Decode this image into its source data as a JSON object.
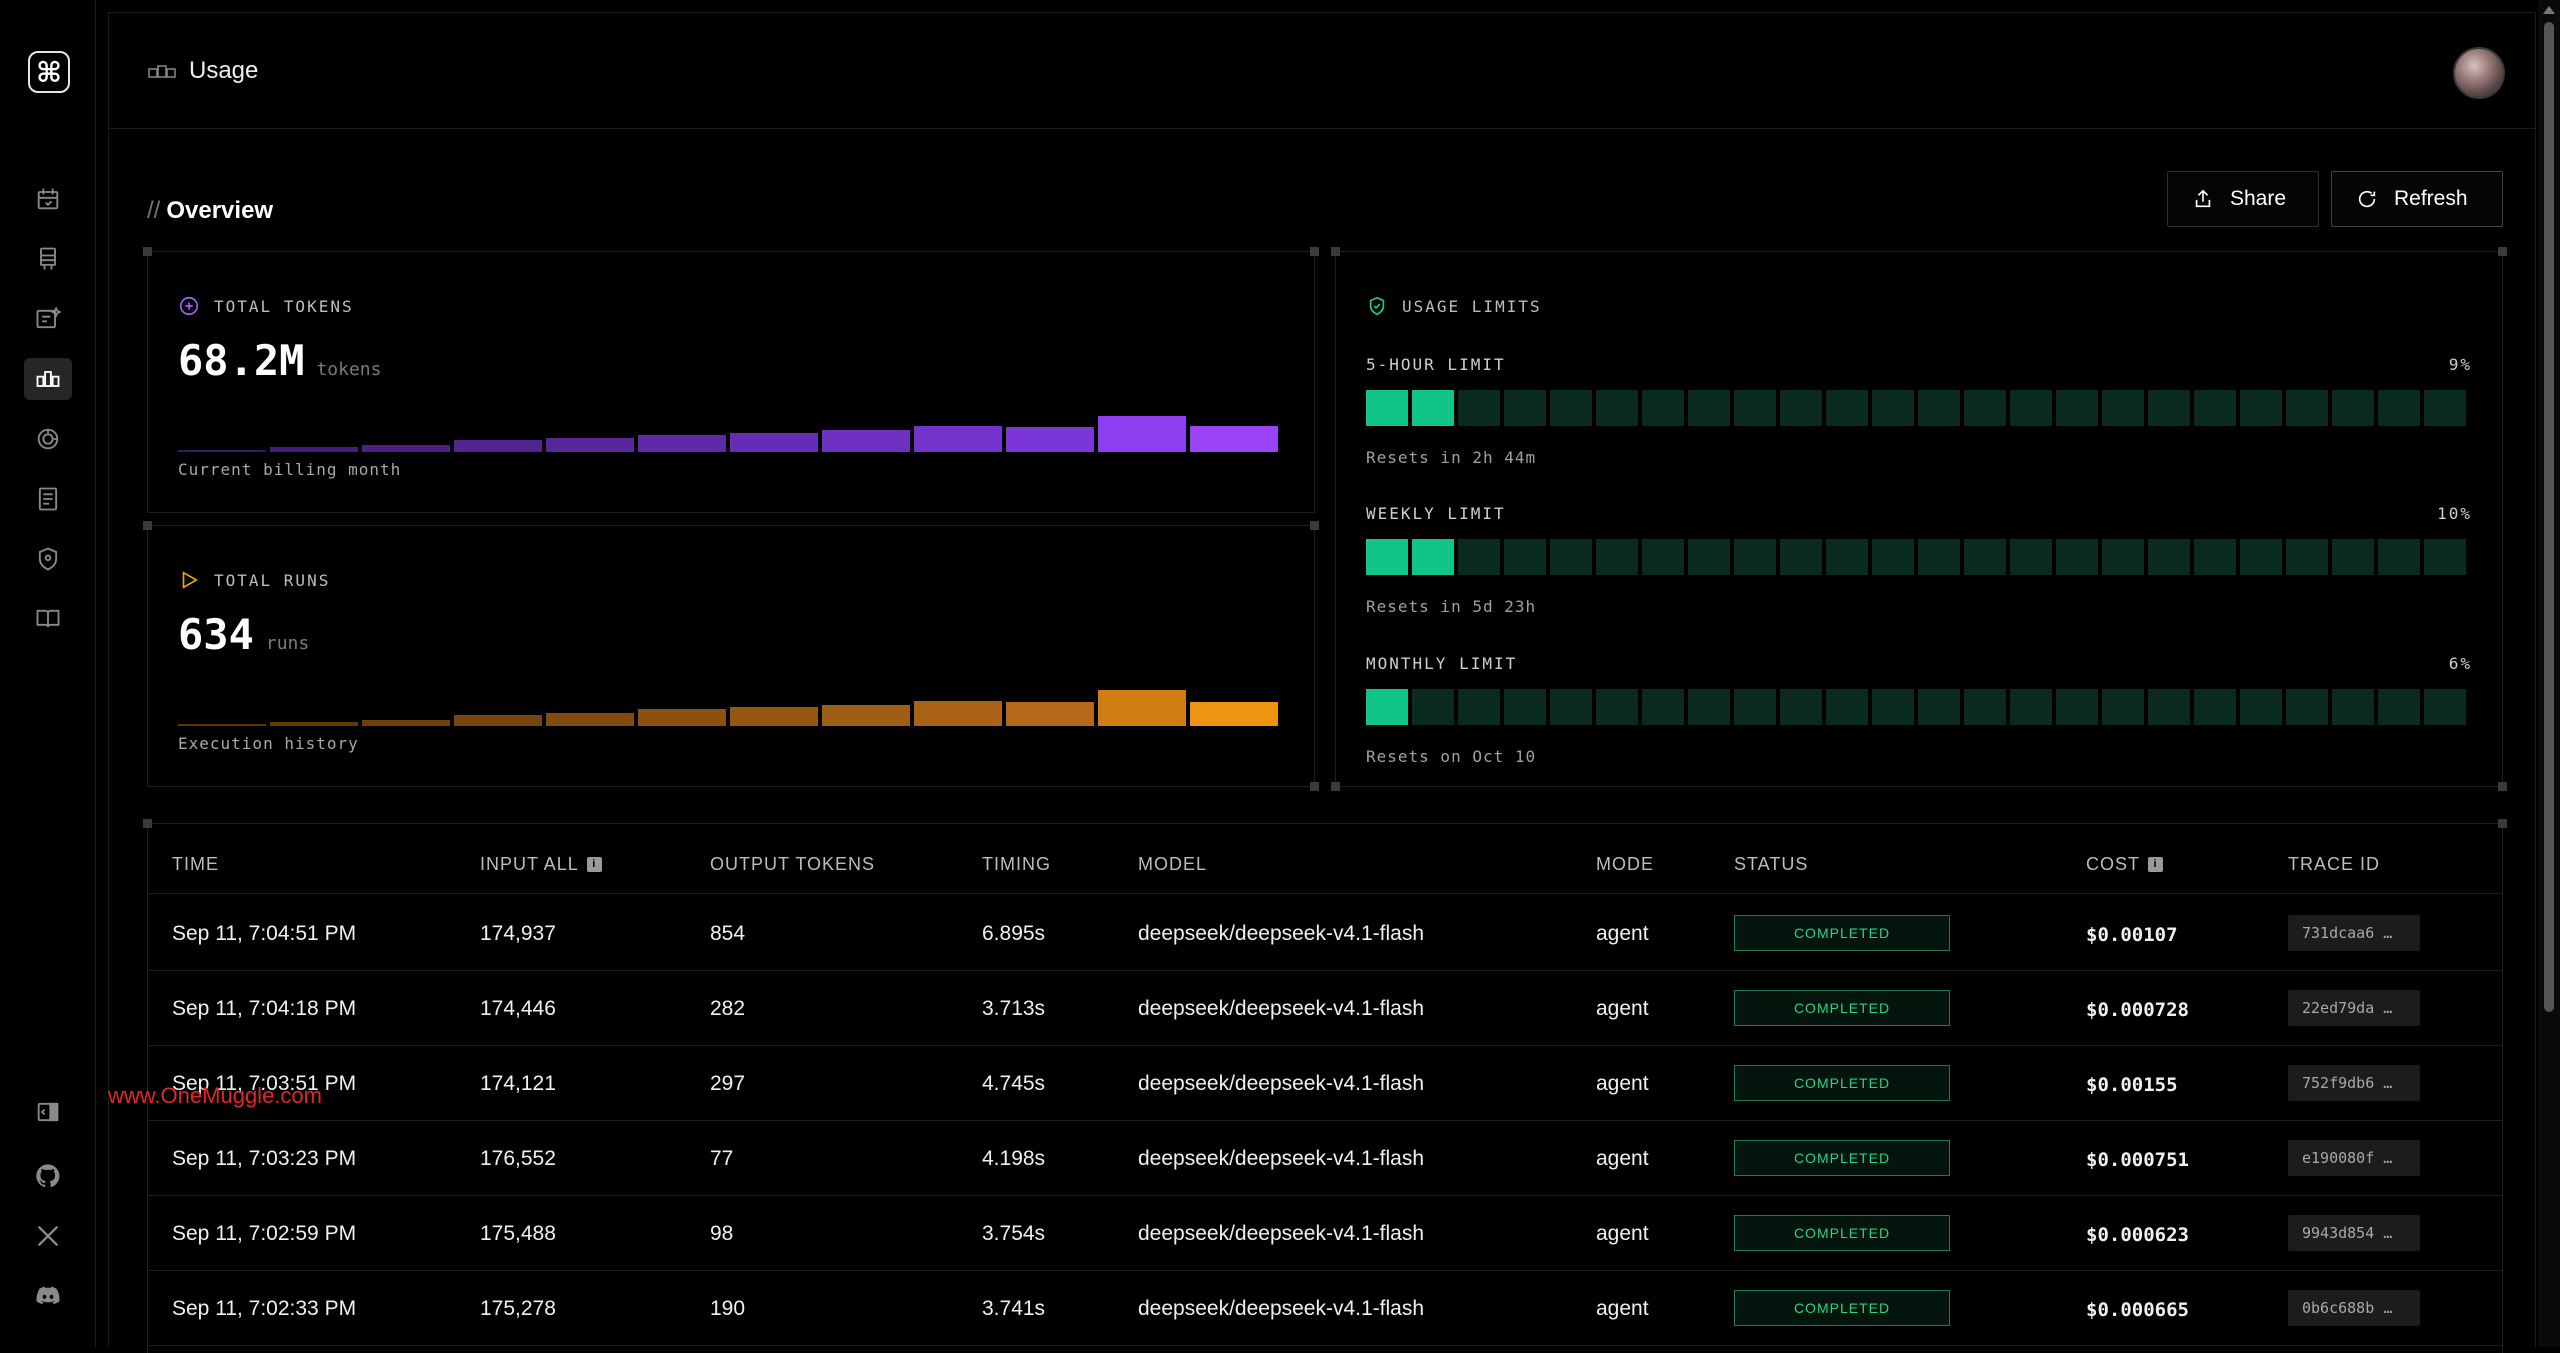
{
  "header": {
    "title": "Usage",
    "icon": "usage-icon"
  },
  "overview": {
    "title": "Overview",
    "slashes": "//",
    "share_label": "Share",
    "refresh_label": "Refresh"
  },
  "tokens_card": {
    "label": "TOTAL TOKENS",
    "value": "68.2M",
    "unit": "tokens",
    "subtitle": "Current billing month",
    "bar_levels": [
      0.04,
      0.14,
      0.2,
      0.32,
      0.38,
      0.46,
      0.54,
      0.6,
      0.72,
      0.7,
      1.0,
      0.72
    ],
    "bar_colors": [
      "#3a1a66",
      "#441e78",
      "#4b2184",
      "#512490",
      "#58279c",
      "#5f2aa8",
      "#662db4",
      "#6d30c0",
      "#7433cc",
      "#7b36d8",
      "#8e3ef0",
      "#9a44f6"
    ]
  },
  "runs_card": {
    "label": "TOTAL RUNS",
    "value": "634",
    "unit": "runs",
    "subtitle": "Execution history",
    "bar_levels": [
      0.04,
      0.1,
      0.16,
      0.3,
      0.36,
      0.46,
      0.54,
      0.58,
      0.7,
      0.66,
      1.0,
      0.68
    ],
    "bar_colors": [
      "#5a3306",
      "#643908",
      "#6e3f0a",
      "#78450c",
      "#824b0e",
      "#8c5110",
      "#965712",
      "#a05d14",
      "#aa6316",
      "#b46918",
      "#d07c12",
      "#ee9410"
    ]
  },
  "limits_card": {
    "label": "USAGE LIMITS",
    "limits": [
      {
        "name": "5-HOUR LIMIT",
        "percent": "9%",
        "level": 0.09,
        "reset": "Resets in 2h 44m"
      },
      {
        "name": "WEEKLY LIMIT",
        "percent": "10%",
        "level": 0.1,
        "reset": "Resets in 5d 23h"
      },
      {
        "name": "MONTHLY LIMIT",
        "percent": "6%",
        "level": 0.06,
        "reset": "Resets on Oct 10"
      }
    ]
  },
  "table": {
    "columns": [
      "TIME",
      "INPUT ALL",
      "OUTPUT TOKENS",
      "TIMING",
      "MODEL",
      "MODE",
      "STATUS",
      "COST",
      "TRACE ID"
    ],
    "rows": [
      {
        "time": "Sep 11, 7:04:51 PM",
        "input": "174,937",
        "output": "854",
        "timing": "6.895s",
        "model": "deepseek/deepseek-v4.1-flash",
        "mode": "agent",
        "status": "COMPLETED",
        "cost": "$0.00107",
        "trace": "731dcaa6 …"
      },
      {
        "time": "Sep 11, 7:04:18 PM",
        "input": "174,446",
        "output": "282",
        "timing": "3.713s",
        "model": "deepseek/deepseek-v4.1-flash",
        "mode": "agent",
        "status": "COMPLETED",
        "cost": "$0.000728",
        "trace": "22ed79da …"
      },
      {
        "time": "Sep 11, 7:03:51 PM",
        "input": "174,121",
        "output": "297",
        "timing": "4.745s",
        "model": "deepseek/deepseek-v4.1-flash",
        "mode": "agent",
        "status": "COMPLETED",
        "cost": "$0.00155",
        "trace": "752f9db6 …"
      },
      {
        "time": "Sep 11, 7:03:23 PM",
        "input": "176,552",
        "output": "77",
        "timing": "4.198s",
        "model": "deepseek/deepseek-v4.1-flash",
        "mode": "agent",
        "status": "COMPLETED",
        "cost": "$0.000751",
        "trace": "e190080f …"
      },
      {
        "time": "Sep 11, 7:02:59 PM",
        "input": "175,488",
        "output": "98",
        "timing": "3.754s",
        "model": "deepseek/deepseek-v4.1-flash",
        "mode": "agent",
        "status": "COMPLETED",
        "cost": "$0.000623",
        "trace": "9943d854 …"
      },
      {
        "time": "Sep 11, 7:02:33 PM",
        "input": "175,278",
        "output": "190",
        "timing": "3.741s",
        "model": "deepseek/deepseek-v4.1-flash",
        "mode": "agent",
        "status": "COMPLETED",
        "cost": "$0.000665",
        "trace": "0b6c688b …"
      }
    ]
  },
  "watermark": "www.OneMuggle.com",
  "colors": {
    "accent_purple": "#8e3ef0",
    "accent_orange": "#ee9410",
    "limit_on": "#11c48a",
    "limit_off": "#0b2a20",
    "status_green": "#29d487"
  }
}
